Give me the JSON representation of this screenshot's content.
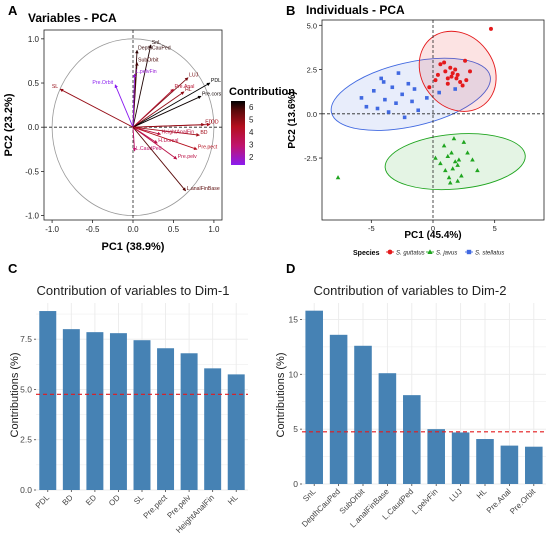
{
  "panels": {
    "A": {
      "letter": "A",
      "title": "Variables - PCA",
      "xlabel": "PC1 (38.9%)",
      "ylabel": "PC2 (23.2%)",
      "legend_title": "Contribution",
      "legend_ticks": [
        "6",
        "5",
        "4",
        "3",
        "2"
      ]
    },
    "B": {
      "letter": "B",
      "title": "Individuals - PCA",
      "xlabel": "PC1 (45.4%)",
      "ylabel": "PC2 (13.6%)",
      "legend_title": "Species",
      "legend_items": [
        "S. guttatus",
        "S. javus",
        "S. stellatus"
      ]
    },
    "C": {
      "letter": "C"
    },
    "D": {
      "letter": "D"
    }
  },
  "colors": {
    "bar": "#4682b4",
    "refline": "#e41a1c",
    "guttatus": "#e41a1c",
    "javus": "#1fa51f",
    "stellatus": "#4169e1",
    "grid": "#ebebeb"
  },
  "chart_data": [
    {
      "type": "scatter",
      "title": "Variables - PCA",
      "xlabel": "PC1 (38.9%)",
      "ylabel": "PC2 (23.2%)",
      "xlim": [
        -1.1,
        1.1
      ],
      "ylim": [
        -1.05,
        1.1
      ],
      "xticks": [
        "-1.0",
        "-0.5",
        "0.0",
        "0.5",
        "1.0"
      ],
      "yticks": [
        "-1.0",
        "-0.5",
        "0.0",
        "0.5",
        "1.0"
      ],
      "arrows": [
        {
          "label": "SnL",
          "x": 0.22,
          "y": 0.93,
          "contrib": 6.5
        },
        {
          "label": "DepthCauPed",
          "x": 0.05,
          "y": 0.87,
          "contrib": 6.2
        },
        {
          "label": "SubOrbit",
          "x": 0.05,
          "y": 0.73,
          "contrib": 5.8
        },
        {
          "label": "L.pelvFin",
          "x": 0.02,
          "y": 0.6,
          "contrib": 2.2
        },
        {
          "label": "Pre.Orbit",
          "x": -0.22,
          "y": 0.48,
          "contrib": 2.0
        },
        {
          "label": "SL",
          "x": -0.9,
          "y": 0.43,
          "contrib": 4.5
        },
        {
          "label": "LUJ",
          "x": 0.68,
          "y": 0.56,
          "contrib": 5.0
        },
        {
          "label": "Pre.Anal",
          "x": 0.5,
          "y": 0.43,
          "contrib": 3.8
        },
        {
          "label": "HL",
          "x": 0.63,
          "y": 0.4,
          "contrib": 4.6
        },
        {
          "label": "PDL",
          "x": 0.95,
          "y": 0.5,
          "contrib": 7.0
        },
        {
          "label": "Pre.cors",
          "x": 0.84,
          "y": 0.35,
          "contrib": 6.8
        },
        {
          "label": "OD",
          "x": 0.95,
          "y": 0.03,
          "contrib": 4.2
        },
        {
          "label": "ED",
          "x": 0.88,
          "y": 0.03,
          "contrib": 4.5
        },
        {
          "label": "BD",
          "x": 0.82,
          "y": -0.09,
          "contrib": 4.3
        },
        {
          "label": "HeightAnalFin",
          "x": 0.34,
          "y": -0.08,
          "contrib": 3.6
        },
        {
          "label": "H.Dorsal",
          "x": 0.3,
          "y": -0.18,
          "contrib": 3.4
        },
        {
          "label": "Pre.pect",
          "x": 0.79,
          "y": -0.25,
          "contrib": 4.0
        },
        {
          "label": "Pre.pelv",
          "x": 0.54,
          "y": -0.36,
          "contrib": 3.5
        },
        {
          "label": "L.CaudPed",
          "x": 0.02,
          "y": -0.27,
          "contrib": 3.0
        },
        {
          "label": "L.analFinBase",
          "x": 0.65,
          "y": -0.72,
          "contrib": 5.5
        }
      ]
    },
    {
      "type": "scatter",
      "title": "Individuals - PCA",
      "xlabel": "PC1 (45.4%)",
      "ylabel": "PC2 (13.6%)",
      "xlim": [
        -9,
        9
      ],
      "ylim": [
        -6,
        5.3
      ],
      "xticks": [
        "-5",
        "0",
        "5"
      ],
      "yticks": [
        "-2.5",
        "0.0",
        "2.5",
        "5.0"
      ],
      "series": [
        {
          "name": "S. guttatus",
          "points": [
            [
              -0.3,
              1.5
            ],
            [
              0.2,
              1.9
            ],
            [
              0.4,
              2.2
            ],
            [
              0.6,
              2.8
            ],
            [
              1.0,
              2.4
            ],
            [
              1.2,
              2.0
            ],
            [
              1.4,
              2.6
            ],
            [
              1.5,
              2.1
            ],
            [
              1.6,
              2.3
            ],
            [
              1.8,
              2.5
            ],
            [
              1.9,
              2.0
            ],
            [
              2.0,
              2.2
            ],
            [
              2.2,
              1.8
            ],
            [
              2.4,
              1.6
            ],
            [
              2.6,
              3.0
            ],
            [
              3.0,
              2.4
            ],
            [
              1.2,
              1.7
            ],
            [
              0.9,
              2.9
            ],
            [
              2.7,
              1.9
            ],
            [
              4.7,
              4.8
            ]
          ]
        },
        {
          "name": "S. javus",
          "points": [
            [
              -7.7,
              -3.6
            ],
            [
              0.2,
              -2.5
            ],
            [
              0.6,
              -2.8
            ],
            [
              0.9,
              -1.8
            ],
            [
              1.0,
              -3.2
            ],
            [
              1.2,
              -2.4
            ],
            [
              1.3,
              -3.6
            ],
            [
              1.5,
              -2.2
            ],
            [
              1.6,
              -3.1
            ],
            [
              1.7,
              -1.4
            ],
            [
              1.8,
              -2.7
            ],
            [
              2.0,
              -2.9
            ],
            [
              2.1,
              -2.6
            ],
            [
              2.3,
              -3.5
            ],
            [
              2.5,
              -1.6
            ],
            [
              2.8,
              -2.2
            ],
            [
              3.2,
              -2.6
            ],
            [
              3.6,
              -3.2
            ],
            [
              1.4,
              -3.9
            ],
            [
              2.0,
              -3.8
            ]
          ]
        },
        {
          "name": "S. stellatus",
          "points": [
            [
              -5.8,
              0.9
            ],
            [
              -5.4,
              0.4
            ],
            [
              -4.8,
              1.3
            ],
            [
              -4.5,
              0.3
            ],
            [
              -4.2,
              2.0
            ],
            [
              -3.9,
              0.8
            ],
            [
              -3.6,
              0.1
            ],
            [
              -3.3,
              1.5
            ],
            [
              -3.0,
              0.6
            ],
            [
              -2.8,
              2.3
            ],
            [
              -2.5,
              1.1
            ],
            [
              -2.3,
              -0.2
            ],
            [
              -2.0,
              1.7
            ],
            [
              -1.7,
              0.7
            ],
            [
              -1.5,
              1.4
            ],
            [
              -1.2,
              0.2
            ],
            [
              -0.5,
              0.9
            ],
            [
              0.5,
              1.2
            ],
            [
              -4.0,
              1.8
            ],
            [
              1.8,
              1.4
            ]
          ]
        }
      ]
    },
    {
      "type": "bar",
      "title": "Contribution of variables to Dim-1",
      "ylabel": "Contributions (%)",
      "categories": [
        "PDL",
        "BD",
        "ED",
        "OD",
        "SL",
        "Pre.pect",
        "Pre.pelv",
        "HeightAnalFin",
        "HL"
      ],
      "values": [
        8.9,
        8.0,
        7.85,
        7.8,
        7.45,
        7.05,
        6.8,
        6.05,
        5.75
      ],
      "ref_line": 4.76,
      "ylim": [
        0,
        9.3
      ],
      "yticks": [
        "0.0",
        "2.5",
        "5.0",
        "7.5"
      ]
    },
    {
      "type": "bar",
      "title": "Contribution of variables to Dim-2",
      "ylabel": "Contributions (%)",
      "categories": [
        "SnL",
        "DepthCauPed",
        "SubOrbit",
        "L.analFinBase",
        "L.CaudPed",
        "L.pelvFin",
        "LUJ",
        "HL",
        "Pre.Anal",
        "Pre.Orbit"
      ],
      "values": [
        15.8,
        13.6,
        12.6,
        10.1,
        8.1,
        5.0,
        4.7,
        4.1,
        3.5,
        3.4
      ],
      "ref_line": 4.76,
      "ylim": [
        0,
        16.5
      ],
      "yticks": [
        "0",
        "5",
        "10",
        "15"
      ]
    }
  ]
}
